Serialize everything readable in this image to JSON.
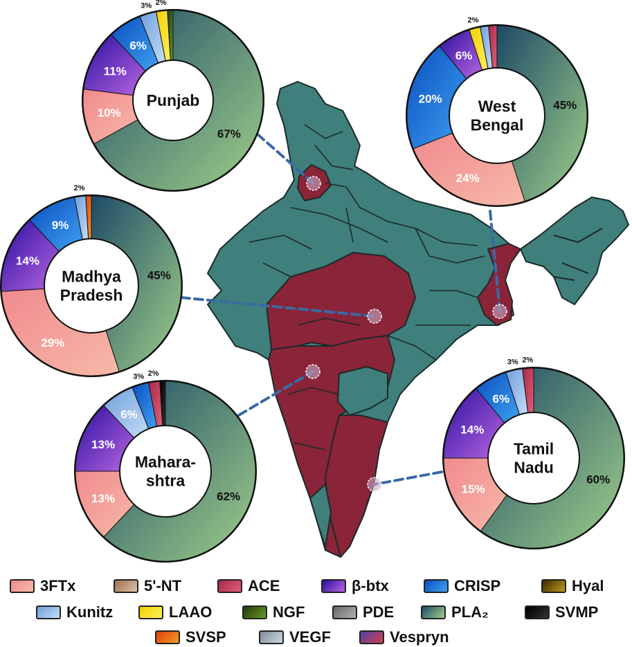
{
  "chart_data": {
    "type": "pie",
    "title": "",
    "categories": [
      "3FTx",
      "5'-NT",
      "ACE",
      "β-btx",
      "CRISP",
      "Hyal",
      "Kunitz",
      "LAAO",
      "NGF",
      "PDE",
      "PLA2",
      "SVMP",
      "SVSP",
      "VEGF",
      "Vespryn"
    ],
    "colors": {
      "3FTx": "#f2a0a4",
      "5'-NT": "#c79a7e",
      "ACE": "#c8405e",
      "β-btx": "#8a3ad6",
      "CRISP": "#1e6fd6",
      "Hyal": "#8a6a10",
      "Kunitz": "#9cc4ec",
      "LAAO": "#f5e20a",
      "NGF": "#3a5a10",
      "PDE": "#8c8c8c",
      "PLA2": "#8fc07a",
      "SVMP": "#111111",
      "SVSP": "#f05a10",
      "VEGF": "#a7b4c0",
      "Vespryn": "#b03050"
    },
    "charts": [
      {
        "region": "Punjab",
        "center_label": [
          "Punjab"
        ],
        "slices": [
          {
            "name": "PLA2",
            "value": 67,
            "label": "67%"
          },
          {
            "name": "3FTx",
            "value": 10,
            "label": "10%"
          },
          {
            "name": "β-btx",
            "value": 11,
            "label": "11%"
          },
          {
            "name": "CRISP",
            "value": 6,
            "label": "6%"
          },
          {
            "name": "Kunitz",
            "value": 3,
            "label": "3%"
          },
          {
            "name": "LAAO",
            "value": 2,
            "label": "2%"
          },
          {
            "name": "NGF",
            "value": 1,
            "label": ""
          }
        ]
      },
      {
        "region": "West Bengal",
        "center_label": [
          "West",
          "Bengal"
        ],
        "slices": [
          {
            "name": "PLA2",
            "value": 45,
            "label": "45%"
          },
          {
            "name": "3FTx",
            "value": 24,
            "label": "24%"
          },
          {
            "name": "CRISP",
            "value": 20,
            "label": "20%"
          },
          {
            "name": "β-btx",
            "value": 6,
            "label": "6%"
          },
          {
            "name": "LAAO",
            "value": 2,
            "label": "2%"
          },
          {
            "name": "Kunitz",
            "value": 1.5,
            "label": ""
          },
          {
            "name": "ACE",
            "value": 1.5,
            "label": ""
          }
        ]
      },
      {
        "region": "Madhya Pradesh",
        "center_label": [
          "Madhya",
          "Pradesh"
        ],
        "slices": [
          {
            "name": "PLA2",
            "value": 45,
            "label": "45%"
          },
          {
            "name": "3FTx",
            "value": 29,
            "label": "29%"
          },
          {
            "name": "β-btx",
            "value": 14,
            "label": "14%"
          },
          {
            "name": "CRISP",
            "value": 9,
            "label": "9%"
          },
          {
            "name": "Kunitz",
            "value": 2,
            "label": "2%"
          },
          {
            "name": "SVSP",
            "value": 1,
            "label": ""
          }
        ]
      },
      {
        "region": "Maharashtra",
        "center_label": [
          "Mahara-",
          "shtra"
        ],
        "slices": [
          {
            "name": "PLA2",
            "value": 62,
            "label": "62%"
          },
          {
            "name": "3FTx",
            "value": 13,
            "label": "13%"
          },
          {
            "name": "β-btx",
            "value": 13,
            "label": "13%"
          },
          {
            "name": "Kunitz",
            "value": 6,
            "label": "6%"
          },
          {
            "name": "CRISP",
            "value": 3,
            "label": "3%"
          },
          {
            "name": "ACE",
            "value": 2,
            "label": "2%"
          },
          {
            "name": "SVMP",
            "value": 1,
            "label": ""
          }
        ]
      },
      {
        "region": "Tamil Nadu",
        "center_label": [
          "Tamil",
          "Nadu"
        ],
        "slices": [
          {
            "name": "PLA2",
            "value": 60,
            "label": "60%"
          },
          {
            "name": "3FTx",
            "value": 15,
            "label": "15%"
          },
          {
            "name": "β-btx",
            "value": 14,
            "label": "14%"
          },
          {
            "name": "CRISP",
            "value": 6,
            "label": "6%"
          },
          {
            "name": "Kunitz",
            "value": 3,
            "label": "3%"
          },
          {
            "name": "ACE",
            "value": 2,
            "label": "2%"
          }
        ]
      }
    ],
    "legend": [
      {
        "name": "3FTx",
        "label": "3FTx"
      },
      {
        "name": "5'-NT",
        "label": "5'-NT"
      },
      {
        "name": "ACE",
        "label": "ACE"
      },
      {
        "name": "β-btx",
        "label": "β-btx"
      },
      {
        "name": "CRISP",
        "label": "CRISP"
      },
      {
        "name": "Hyal",
        "label": "Hyal"
      },
      {
        "name": "Kunitz",
        "label": "Kunitz"
      },
      {
        "name": "LAAO",
        "label": "LAAO"
      },
      {
        "name": "NGF",
        "label": "NGF"
      },
      {
        "name": "PDE",
        "label": "PDE"
      },
      {
        "name": "PLA2",
        "label": "PLA₂"
      },
      {
        "name": "SVMP",
        "label": "SVMP"
      },
      {
        "name": "SVSP",
        "label": "SVSP"
      },
      {
        "name": "VEGF",
        "label": "VEGF"
      },
      {
        "name": "Vespryn",
        "label": "Vespryn"
      }
    ]
  },
  "map": {
    "highlight_color": "#8a2438",
    "base_color": "#3f7f7c"
  }
}
